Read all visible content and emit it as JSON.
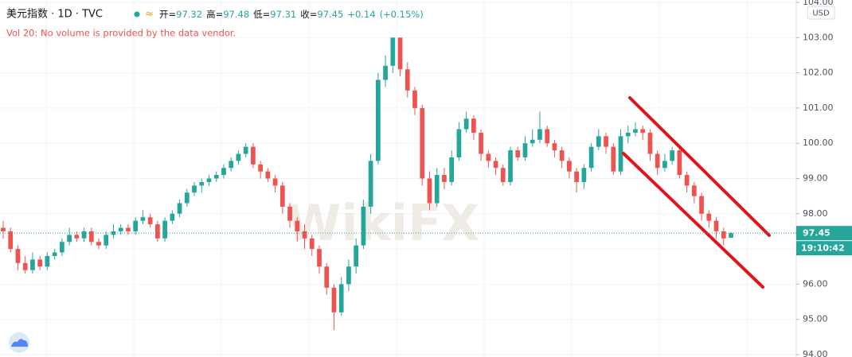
{
  "chart_data": {
    "type": "candlestick",
    "title": "美元指数 · 1D · TVC",
    "ohlc_legend": [
      {
        "label": "开=",
        "value": 97.32
      },
      {
        "label": "高=",
        "value": 97.48
      },
      {
        "label": "低=",
        "value": 97.31
      },
      {
        "label": "收=",
        "value": 97.45
      }
    ],
    "change": {
      "value": 0.14,
      "label": "+0.14"
    },
    "change_pct": {
      "value": 0.15,
      "label": "(+0.15%)"
    },
    "subtitle": "Vol 20: No volume is provided by the data vendor.",
    "currency": "USD",
    "last_price": 97.45,
    "countdown": "19:10:42",
    "watermark": "WikiFX",
    "up_color": "#26a69a",
    "down_color": "#ef5350",
    "grid": true,
    "ylim": [
      94.0,
      104.0
    ],
    "yticks": [
      {
        "value": 94,
        "label": "94.00"
      },
      {
        "value": 95,
        "label": "95.00"
      },
      {
        "value": 96,
        "label": "96.00"
      },
      {
        "value": 97,
        "label": "97.00"
      },
      {
        "value": 98,
        "label": "98.00"
      },
      {
        "value": 99,
        "label": "99.00"
      },
      {
        "value": 100,
        "label": "100.00"
      },
      {
        "value": 101,
        "label": "101.00"
      },
      {
        "value": 102,
        "label": "102.00"
      },
      {
        "value": 103,
        "label": "103.00"
      },
      {
        "value": 104,
        "label": "104.00"
      }
    ],
    "open": [
      97.6,
      97.5,
      97.0,
      96.6,
      96.4,
      96.7,
      96.5,
      96.8,
      96.9,
      97.2,
      97.4,
      97.3,
      97.5,
      97.2,
      97.1,
      97.4,
      97.5,
      97.6,
      97.5,
      97.8,
      97.9,
      97.7,
      97.3,
      97.8,
      98.0,
      98.3,
      98.6,
      98.8,
      98.9,
      99.0,
      99.1,
      99.3,
      99.5,
      99.7,
      99.9,
      99.4,
      99.2,
      99.0,
      98.8,
      98.2,
      97.8,
      97.5,
      97.3,
      97.0,
      96.5,
      95.9,
      95.2,
      96.0,
      96.5,
      97.1,
      98.2,
      99.5,
      101.8,
      102.2,
      103.0,
      102.1,
      101.5,
      101.0,
      99.0,
      98.3,
      99.1,
      98.9,
      99.6,
      100.4,
      100.7,
      100.3,
      99.7,
      99.5,
      99.3,
      98.9,
      99.8,
      99.6,
      100.0,
      100.1,
      100.4,
      100.0,
      99.8,
      99.5,
      99.2,
      98.9,
      99.3,
      99.9,
      100.2,
      99.9,
      99.2,
      100.2,
      100.3,
      100.4,
      100.3,
      99.7,
      99.3,
      99.5,
      99.8,
      99.1,
      98.8,
      98.5,
      98.0,
      97.8,
      97.5,
      97.32
    ],
    "high": [
      97.8,
      97.6,
      97.1,
      96.8,
      96.9,
      96.8,
      96.9,
      97.0,
      97.3,
      97.6,
      97.5,
      97.6,
      97.6,
      97.3,
      97.5,
      97.7,
      97.7,
      97.7,
      97.9,
      98.1,
      98.0,
      97.8,
      97.9,
      98.1,
      98.4,
      98.7,
      98.9,
      99.0,
      99.1,
      99.2,
      99.4,
      99.6,
      99.8,
      100.0,
      100.0,
      99.5,
      99.3,
      99.1,
      98.9,
      98.3,
      97.9,
      97.7,
      97.4,
      97.1,
      96.6,
      96.0,
      96.2,
      96.7,
      97.3,
      98.4,
      99.7,
      102.0,
      102.5,
      103.0,
      103.0,
      102.3,
      101.6,
      101.1,
      99.2,
      99.3,
      99.3,
      99.8,
      100.6,
      100.9,
      100.8,
      100.4,
      99.8,
      99.6,
      99.4,
      99.9,
      99.9,
      100.2,
      100.4,
      100.9,
      100.5,
      100.1,
      99.9,
      99.6,
      99.3,
      99.4,
      100.0,
      100.4,
      100.3,
      100.0,
      100.4,
      100.5,
      100.6,
      100.5,
      100.4,
      99.8,
      99.7,
      99.9,
      99.9,
      99.2,
      98.9,
      98.6,
      98.1,
      97.9,
      97.6,
      97.48
    ],
    "low": [
      97.3,
      96.9,
      96.4,
      96.3,
      96.3,
      96.4,
      96.4,
      96.7,
      96.8,
      97.1,
      97.2,
      97.2,
      97.1,
      97.0,
      97.0,
      97.3,
      97.4,
      97.4,
      97.4,
      97.7,
      97.6,
      97.2,
      97.2,
      97.7,
      97.9,
      98.2,
      98.5,
      98.6,
      98.8,
      98.9,
      99.0,
      99.2,
      99.4,
      99.6,
      99.3,
      99.0,
      98.9,
      98.6,
      98.0,
      97.6,
      97.2,
      97.0,
      96.8,
      96.3,
      95.7,
      94.7,
      95.1,
      95.8,
      96.3,
      97.0,
      98.0,
      99.4,
      101.6,
      102.0,
      101.9,
      101.3,
      100.8,
      98.8,
      98.1,
      98.2,
      98.7,
      98.8,
      99.5,
      100.3,
      100.1,
      99.5,
      99.3,
      99.1,
      98.8,
      98.8,
      99.5,
      99.5,
      99.9,
      100.0,
      99.9,
      99.6,
      99.3,
      99.0,
      98.6,
      98.7,
      99.2,
      99.8,
      99.7,
      99.1,
      99.1,
      100.0,
      100.2,
      100.1,
      99.5,
      99.1,
      99.2,
      99.4,
      99.0,
      98.6,
      98.3,
      97.8,
      97.6,
      97.3,
      97.1,
      97.31
    ],
    "close": [
      97.5,
      97.0,
      96.6,
      96.4,
      96.7,
      96.5,
      96.8,
      96.9,
      97.2,
      97.4,
      97.3,
      97.5,
      97.2,
      97.1,
      97.4,
      97.5,
      97.6,
      97.5,
      97.8,
      97.9,
      97.7,
      97.3,
      97.8,
      98.0,
      98.3,
      98.6,
      98.8,
      98.9,
      99.0,
      99.1,
      99.3,
      99.5,
      99.7,
      99.9,
      99.4,
      99.2,
      99.0,
      98.8,
      98.2,
      97.8,
      97.5,
      97.3,
      97.0,
      96.5,
      95.9,
      95.2,
      96.0,
      96.5,
      97.1,
      98.2,
      99.5,
      101.8,
      102.2,
      103.0,
      102.1,
      101.5,
      101.0,
      99.0,
      98.3,
      99.1,
      98.9,
      99.6,
      100.4,
      100.7,
      100.3,
      99.7,
      99.5,
      99.3,
      98.9,
      99.8,
      99.6,
      100.0,
      100.1,
      100.4,
      100.0,
      99.8,
      99.5,
      99.2,
      98.9,
      99.3,
      99.9,
      100.2,
      99.9,
      99.2,
      100.2,
      100.3,
      100.4,
      100.3,
      99.7,
      99.3,
      99.5,
      99.8,
      99.1,
      98.8,
      98.5,
      98.0,
      97.8,
      97.5,
      97.3,
      97.45
    ]
  }
}
